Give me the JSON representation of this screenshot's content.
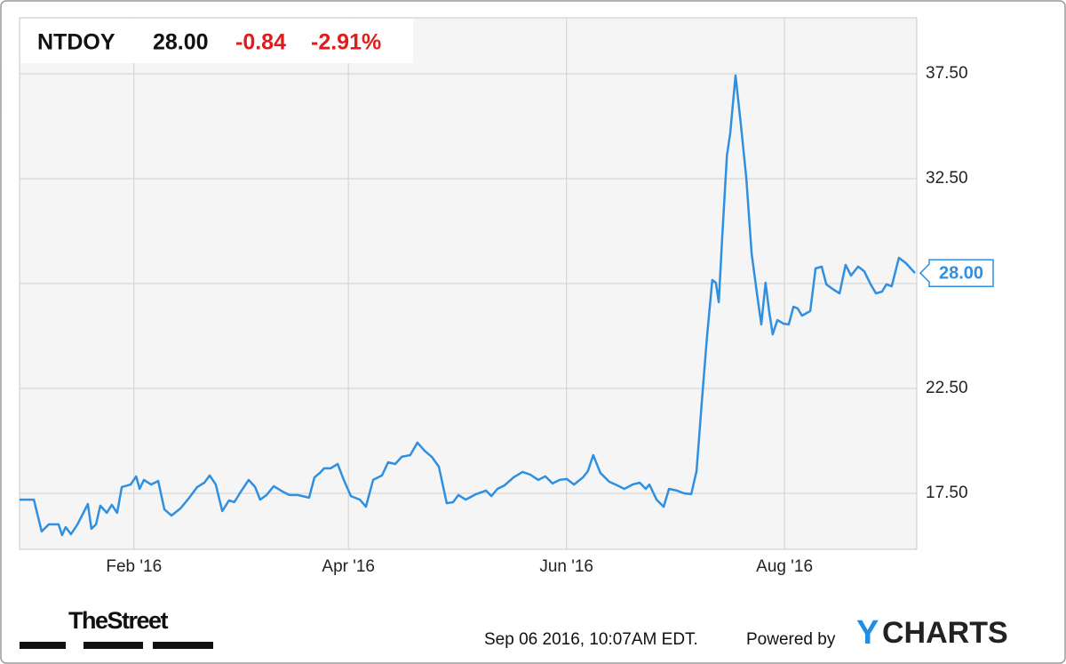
{
  "chart_data": {
    "type": "line",
    "header": {
      "ticker": "NTDOY",
      "price": "28.00",
      "change": "-0.84",
      "change_pct": "-2.91%"
    },
    "footer": {
      "source_logo": "TheStreet",
      "timestamp": "Sep 06 2016, 10:07AM EDT.",
      "powered_by": "Powered by",
      "brand_first": "Y",
      "brand_rest": "CHARTS"
    },
    "color": "#2f8fe0",
    "grid": true,
    "xlim": [
      0,
      251
    ],
    "xticks": [
      {
        "value": 32,
        "label": "Feb '16"
      },
      {
        "value": 92,
        "label": "Apr '16"
      },
      {
        "value": 153,
        "label": "Jun '16"
      },
      {
        "value": 214,
        "label": "Aug '16"
      }
    ],
    "ylim": [
      14.83,
      40.17
    ],
    "yticks": [
      {
        "value": 17.5,
        "label": "17.50"
      },
      {
        "value": 22.5,
        "label": "22.50"
      },
      {
        "value": 27.5,
        "label": null
      },
      {
        "value": 32.5,
        "label": "32.50"
      },
      {
        "value": 37.5,
        "label": "37.50"
      }
    ],
    "x": [
      0,
      4,
      6.2,
      8.2,
      10.9,
      11.9,
      12.9,
      14.4,
      16.2,
      19.1,
      20.1,
      21.4,
      22.6,
      24.4,
      25.8,
      27.3,
      28.6,
      31.1,
      32.6,
      33.6,
      34.8,
      36.8,
      38.8,
      40.5,
      42.5,
      45.0,
      47.5,
      49.7,
      51.7,
      53.2,
      54.9,
      56.7,
      58.6,
      60.1,
      62.1,
      64.1,
      65.9,
      67.3,
      69.1,
      71.1,
      73.6,
      75.5,
      77.8,
      81.0,
      82.5,
      84.0,
      85.2,
      87.0,
      89.0,
      90.7,
      92.7,
      95.2,
      96.9,
      98.9,
      101.4,
      103.1,
      105.1,
      106.9,
      109.3,
      111.3,
      113.3,
      115.3,
      117.3,
      119.5,
      121.3,
      122.8,
      124.8,
      127.7,
      130.5,
      132.0,
      133.7,
      135.7,
      138.2,
      140.7,
      142.9,
      145.1,
      147.1,
      149.1,
      151.1,
      153.1,
      155.1,
      157.6,
      159.0,
      160.5,
      162.5,
      165.0,
      167.2,
      169.2,
      171.5,
      173.5,
      175.2,
      176.2,
      178.2,
      180.2,
      181.7,
      183.9,
      185.9,
      187.9,
      189.4,
      190.9,
      192.3,
      193.8,
      194.8,
      195.6,
      196.6,
      197.9,
      198.8,
      200.3,
      201.8,
      203.3,
      204.8,
      206.3,
      207.5,
      208.7,
      209.7,
      210.7,
      212.0,
      213.7,
      215.2,
      216.5,
      217.7,
      218.9,
      221.2,
      222.7,
      224.4,
      225.7,
      227.4,
      229.4,
      231.1,
      232.6,
      234.6,
      236.3,
      238.1,
      239.6,
      241.3,
      242.5,
      244.0,
      246.0,
      248.0,
      250.5
    ],
    "values": [
      17.2,
      17.2,
      15.68,
      16.02,
      16.02,
      15.51,
      15.89,
      15.55,
      16.02,
      16.99,
      15.81,
      16.02,
      16.91,
      16.57,
      16.95,
      16.57,
      17.8,
      17.92,
      18.31,
      17.71,
      18.14,
      17.92,
      18.09,
      16.74,
      16.44,
      16.78,
      17.29,
      17.8,
      18.01,
      18.35,
      17.92,
      16.65,
      17.16,
      17.08,
      17.63,
      18.14,
      17.8,
      17.2,
      17.42,
      17.84,
      17.58,
      17.42,
      17.42,
      17.29,
      18.26,
      18.47,
      18.69,
      18.69,
      18.9,
      18.14,
      17.37,
      17.2,
      16.86,
      18.14,
      18.35,
      18.98,
      18.9,
      19.24,
      19.32,
      19.92,
      19.53,
      19.24,
      18.77,
      17.03,
      17.08,
      17.42,
      17.2,
      17.46,
      17.63,
      17.37,
      17.71,
      17.88,
      18.26,
      18.52,
      18.39,
      18.14,
      18.31,
      17.97,
      18.14,
      18.18,
      17.92,
      18.26,
      18.56,
      19.32,
      18.47,
      18.05,
      17.88,
      17.71,
      17.92,
      18.01,
      17.71,
      17.92,
      17.2,
      16.86,
      17.71,
      17.63,
      17.5,
      17.46,
      18.56,
      21.95,
      24.92,
      27.67,
      27.54,
      26.61,
      29.79,
      33.6,
      34.66,
      37.42,
      35.08,
      32.54,
      28.94,
      27.03,
      25.55,
      27.54,
      26.19,
      25.08,
      25.76,
      25.59,
      25.55,
      26.4,
      26.31,
      25.97,
      26.19,
      28.22,
      28.31,
      27.46,
      27.25,
      27.03,
      28.39,
      27.88,
      28.31,
      28.09,
      27.46,
      27.03,
      27.12,
      27.46,
      27.37,
      28.73,
      28.47,
      28.0
    ]
  }
}
